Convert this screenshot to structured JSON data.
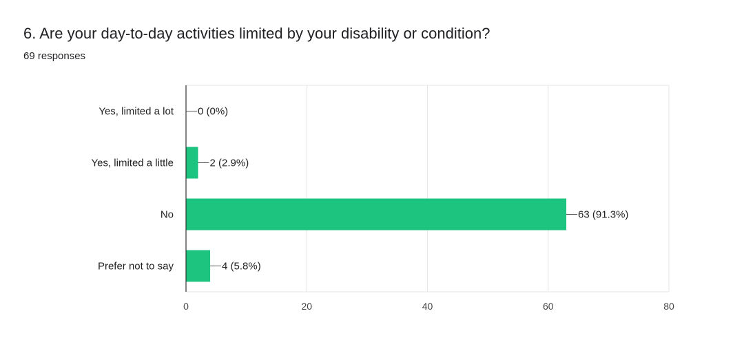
{
  "header": {
    "title": "6. Are your day-to-day activities limited by your disability or condition?",
    "responses": "69 responses"
  },
  "chart_data": {
    "type": "bar",
    "orientation": "horizontal",
    "categories": [
      "Yes, limited a lot",
      "Yes, limited a little",
      "No",
      "Prefer not to say"
    ],
    "values": [
      0,
      2,
      63,
      4
    ],
    "data_labels": [
      "0 (0%)",
      "2 (2.9%)",
      "63 (91.3%)",
      "4 (5.8%)"
    ],
    "xlim": [
      0,
      80
    ],
    "xticks": [
      0,
      20,
      40,
      60,
      80
    ],
    "grid": true,
    "bar_color": "#1cc47f"
  }
}
